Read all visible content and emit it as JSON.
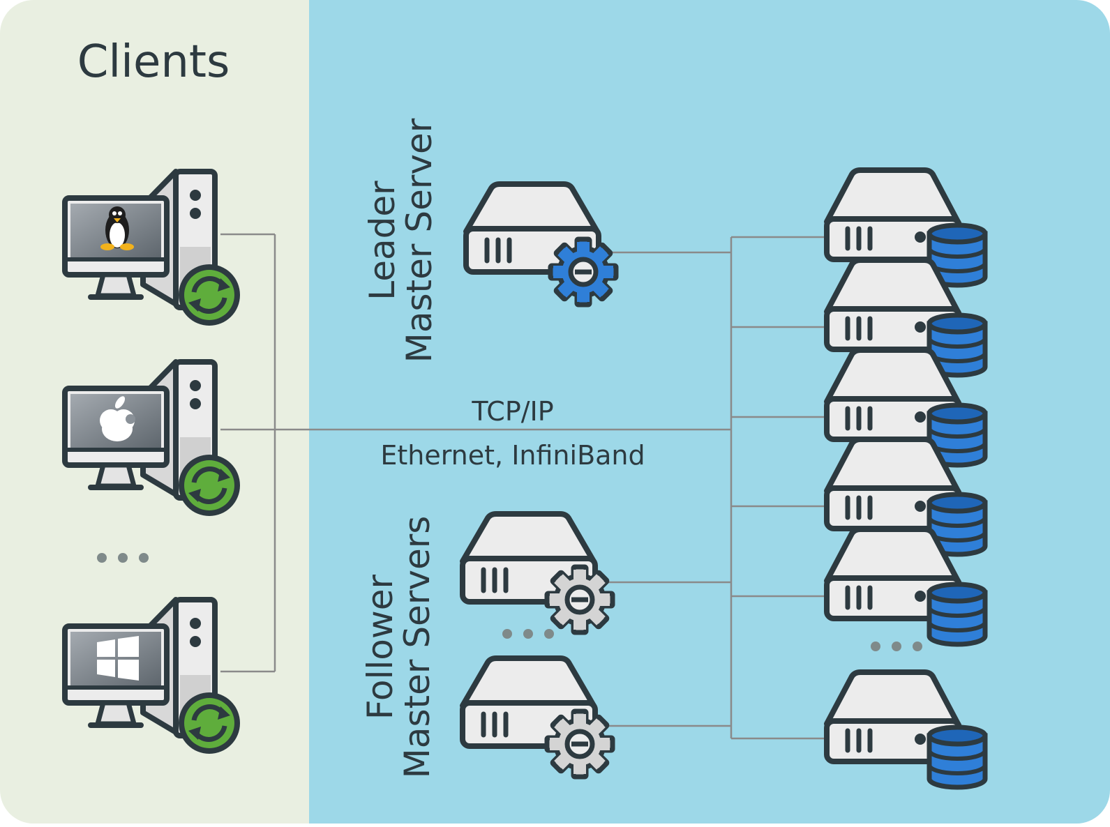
{
  "clients": {
    "heading": "Clients",
    "items": [
      {
        "os_icon": "linux-tux-icon"
      },
      {
        "os_icon": "apple-icon"
      },
      {
        "os_icon": "windows-icon"
      }
    ],
    "ellipsis": "..."
  },
  "leader": {
    "label_line1": "Leader",
    "label_line2": "Master Server"
  },
  "followers": {
    "label_line1": "Follower",
    "label_line2": "Master Servers"
  },
  "network": {
    "protocol": "TCP/IP",
    "transport": "Ethernet, InfiniBand"
  },
  "colors": {
    "clients_panel": "#e9efe1",
    "server_panel": "#9dd8e8",
    "outline": "#2d3a40",
    "server_face": "#ececec",
    "gear_leader": "#2f7fd8",
    "gear_follower": "#d4d4d4",
    "sync_badge": "#5fad3c",
    "database": "#2f7fd8",
    "connector": "#8a8a8a"
  }
}
